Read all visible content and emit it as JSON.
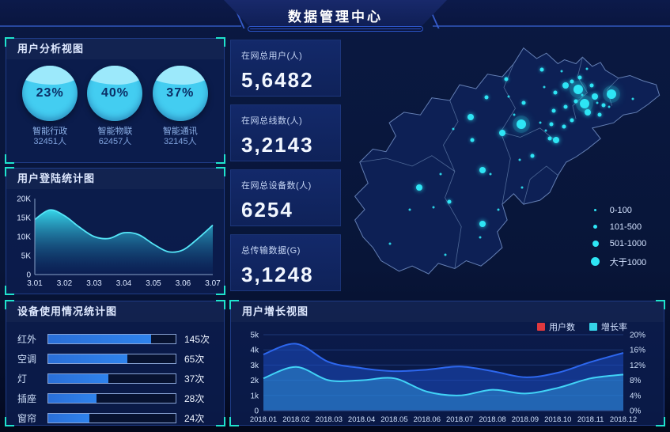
{
  "header": {
    "title": "数据管理中心"
  },
  "panels": {
    "user_analysis": {
      "title": "用户分析视图"
    },
    "login_stats": {
      "title": "用户登陆统计图"
    },
    "device_usage": {
      "title": "设备使用情况统计图"
    },
    "user_growth": {
      "title": "用户增长视图"
    }
  },
  "colors": {
    "accent_cyan": "#2ee5f5",
    "bracket": "#1fe3cd",
    "bar_blue": "#2f83ec",
    "users_series": "#2d67ee",
    "growth_series": "#41d3f7",
    "legend_users_swatch": "#e0393e",
    "legend_growth_swatch": "#35d3e8"
  },
  "user_analysis": {
    "items": [
      {
        "percent": "23%",
        "label": "智能行政",
        "count": "32451人"
      },
      {
        "percent": "40%",
        "label": "智能物联",
        "count": "62457人"
      },
      {
        "percent": "37%",
        "label": "智能通讯",
        "count": "32145人"
      }
    ]
  },
  "stats": [
    {
      "label": "在网总用户(人)",
      "value": "5,6482"
    },
    {
      "label": "在网总线数(人)",
      "value": "3,2143"
    },
    {
      "label": "在网总设备数(人)",
      "value": "6254"
    },
    {
      "label": "总传输数据(G)",
      "value": "3,1248"
    }
  ],
  "map": {
    "legend": [
      {
        "label": "0-100",
        "size": 3
      },
      {
        "label": "101-500",
        "size": 5
      },
      {
        "label": "501-1000",
        "size": 8
      },
      {
        "label": "大于1000",
        "size": 11
      }
    ],
    "dots": [
      [
        72.7,
        20.8,
        4
      ],
      [
        74.6,
        26.2,
        4
      ],
      [
        82.9,
        22.6,
        4
      ],
      [
        55.3,
        34.0,
        4
      ],
      [
        68.8,
        19.3,
        3
      ],
      [
        77.8,
        23.5,
        3
      ],
      [
        75.6,
        29.5,
        3
      ],
      [
        65.9,
        40.1,
        3
      ],
      [
        49.5,
        37.3,
        3
      ],
      [
        43.5,
        51.5,
        3
      ],
      [
        24.2,
        58.1,
        3
      ],
      [
        43.5,
        72.0,
        3
      ],
      [
        39.9,
        31.3,
        3
      ],
      [
        61.6,
        13.3,
        2
      ],
      [
        65.7,
        22.0,
        2
      ],
      [
        70.8,
        17.8,
        2
      ],
      [
        73.2,
        16.3,
        2
      ],
      [
        80.4,
        26.8,
        2
      ],
      [
        70.8,
        32.5,
        2
      ],
      [
        68.4,
        34.9,
        2
      ],
      [
        64.5,
        34.0,
        2
      ],
      [
        56.0,
        25.9,
        2
      ],
      [
        44.7,
        23.8,
        2
      ],
      [
        40.3,
        40.1,
        2
      ],
      [
        58.7,
        46.1,
        2
      ],
      [
        64.0,
        39.5,
        2
      ],
      [
        33.3,
        63.6,
        2
      ],
      [
        50.7,
        16.9,
        2
      ],
      [
        68.8,
        27.4,
        2
      ],
      [
        65.2,
        28.9,
        2
      ],
      [
        72.0,
        25.3,
        2
      ],
      [
        76.8,
        19.3,
        2
      ],
      [
        79.2,
        30.4,
        2
      ],
      [
        75.4,
        13.0,
        1
      ],
      [
        51.4,
        23.5,
        1
      ],
      [
        61.1,
        33.4,
        1
      ],
      [
        34.5,
        35.8,
        1
      ],
      [
        45.9,
        53.0,
        1
      ],
      [
        54.8,
        47.6,
        1
      ],
      [
        30.7,
        53.0,
        1
      ],
      [
        28.5,
        65.7,
        1
      ],
      [
        21.3,
        66.6,
        1
      ],
      [
        42.8,
        77.1,
        1
      ],
      [
        15.2,
        79.5,
        1
      ],
      [
        32.1,
        83.7,
        1
      ],
      [
        55.6,
        58.1,
        1
      ],
      [
        48.3,
        66.6,
        1
      ],
      [
        62.3,
        19.9,
        1
      ],
      [
        67.6,
        13.9,
        1
      ],
      [
        73.9,
        22.9,
        1
      ],
      [
        78.5,
        25.9,
        1
      ],
      [
        82.1,
        27.4,
        1
      ],
      [
        89.4,
        24.4,
        1
      ],
      [
        62.8,
        36.4,
        1
      ],
      [
        53.1,
        30.4,
        1
      ]
    ]
  },
  "chart_data": [
    {
      "id": "login",
      "type": "area",
      "title": "用户登陆统计图",
      "categories": [
        "3.01",
        "3.02",
        "3.03",
        "3.04",
        "3.05",
        "3.06",
        "3.07"
      ],
      "values_k": [
        14.5,
        15,
        10,
        11,
        8,
        7,
        13
      ],
      "curve_k": [
        14.5,
        17,
        15.5,
        12.5,
        10,
        9.5,
        11,
        10.5,
        8,
        6,
        6.5,
        9.5,
        13
      ],
      "y_ticks": [
        "0",
        "5K",
        "10K",
        "15K",
        "20K"
      ],
      "ylim": [
        0,
        20
      ],
      "grid": false,
      "legend": "none"
    },
    {
      "id": "device",
      "type": "bar",
      "title": "设备使用情况统计图",
      "orientation": "horizontal",
      "items": [
        {
          "label": "红外",
          "value": "145次",
          "pct": 81
        },
        {
          "label": "空调",
          "value": "65次",
          "pct": 62
        },
        {
          "label": "灯",
          "value": "37次",
          "pct": 47
        },
        {
          "label": "插座",
          "value": "28次",
          "pct": 38
        },
        {
          "label": "窗帘",
          "value": "24次",
          "pct": 32
        }
      ]
    },
    {
      "id": "growth",
      "type": "area",
      "title": "用户增长视图",
      "categories": [
        "2018.01",
        "2018.02",
        "2018.03",
        "2018.04",
        "2018.05",
        "2018.06",
        "2018.07",
        "2018.08",
        "2018.09",
        "2018.10",
        "2018.11",
        "2018.12"
      ],
      "series": [
        {
          "name": "用户数",
          "axis": "left",
          "unit": "k",
          "values": [
            3.7,
            4.4,
            3.2,
            2.8,
            2.6,
            2.7,
            2.9,
            2.6,
            2.2,
            2.5,
            3.2,
            3.8
          ]
        },
        {
          "name": "增长率",
          "axis": "right",
          "unit": "%",
          "values": [
            8.5,
            11.5,
            8,
            8,
            8.5,
            5,
            4,
            5.5,
            4.5,
            6,
            8.5,
            9.5
          ]
        }
      ],
      "left_ticks": [
        "0",
        "1k",
        "2k",
        "3k",
        "4k",
        "5k"
      ],
      "ylim_left": [
        0,
        5
      ],
      "right_ticks": [
        "0%",
        "4%",
        "8%",
        "12%",
        "16%",
        "20%"
      ],
      "ylim_right": [
        0,
        20
      ],
      "grid": true,
      "legend_position": "top-right"
    }
  ]
}
